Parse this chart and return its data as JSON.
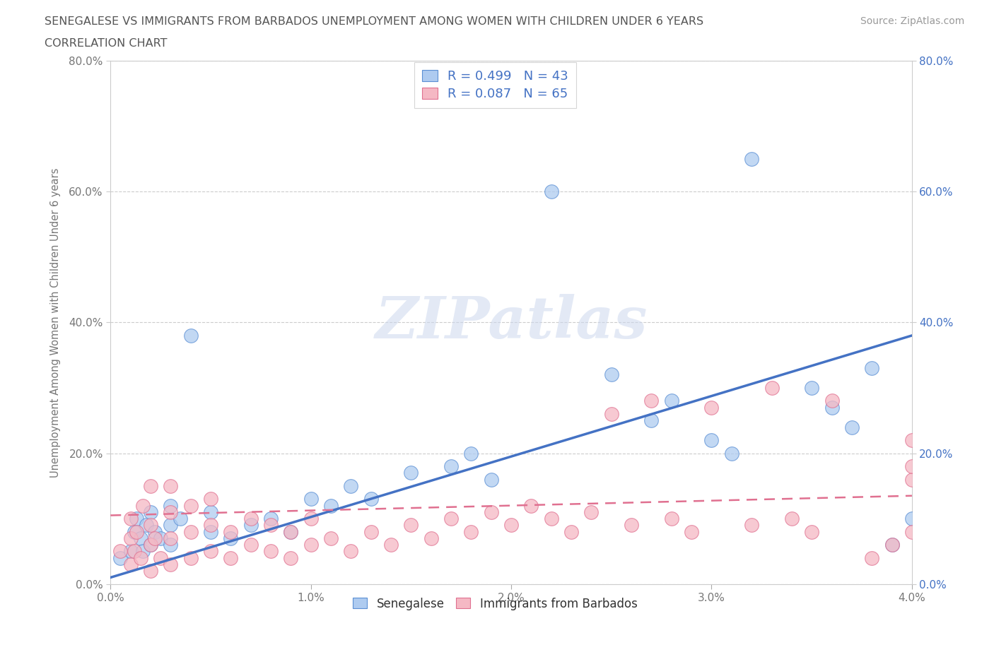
{
  "title_line1": "SENEGALESE VS IMMIGRANTS FROM BARBADOS UNEMPLOYMENT AMONG WOMEN WITH CHILDREN UNDER 6 YEARS",
  "title_line2": "CORRELATION CHART",
  "source": "Source: ZipAtlas.com",
  "ylabel": "Unemployment Among Women with Children Under 6 years",
  "xlim": [
    0.0,
    0.04
  ],
  "ylim": [
    0.0,
    0.8
  ],
  "xticks": [
    0.0,
    0.01,
    0.02,
    0.03,
    0.04
  ],
  "xtick_labels": [
    "0.0%",
    "1.0%",
    "2.0%",
    "3.0%",
    "4.0%"
  ],
  "yticks": [
    0.0,
    0.2,
    0.4,
    0.6,
    0.8
  ],
  "ytick_labels": [
    "0.0%",
    "20.0%",
    "40.0%",
    "60.0%",
    "80.0%"
  ],
  "legend1_label": "Senegalese",
  "legend2_label": "Immigrants from Barbados",
  "R1": 0.499,
  "N1": 43,
  "R2": 0.087,
  "N2": 65,
  "color_blue_fill": "#aecbf0",
  "color_pink_fill": "#f5b8c4",
  "color_blue_edge": "#5b8fd4",
  "color_pink_edge": "#e07090",
  "color_blue_text": "#4472c4",
  "color_line_blue": "#4472c4",
  "color_line_pink": "#e07090",
  "watermark": "ZIPatlas",
  "blue_line_y0": 0.01,
  "blue_line_y1": 0.38,
  "pink_line_y0": 0.105,
  "pink_line_y1": 0.135,
  "senegalese_x": [
    0.0005,
    0.001,
    0.0012,
    0.0013,
    0.0015,
    0.0016,
    0.0018,
    0.002,
    0.002,
    0.0022,
    0.0025,
    0.003,
    0.003,
    0.003,
    0.0035,
    0.004,
    0.005,
    0.005,
    0.006,
    0.007,
    0.008,
    0.009,
    0.01,
    0.011,
    0.012,
    0.013,
    0.015,
    0.017,
    0.018,
    0.019,
    0.022,
    0.025,
    0.027,
    0.028,
    0.03,
    0.031,
    0.032,
    0.035,
    0.036,
    0.037,
    0.038,
    0.039,
    0.04
  ],
  "senegalese_y": [
    0.04,
    0.05,
    0.08,
    0.1,
    0.07,
    0.05,
    0.09,
    0.06,
    0.11,
    0.08,
    0.07,
    0.09,
    0.12,
    0.06,
    0.1,
    0.38,
    0.08,
    0.11,
    0.07,
    0.09,
    0.1,
    0.08,
    0.13,
    0.12,
    0.15,
    0.13,
    0.17,
    0.18,
    0.2,
    0.16,
    0.6,
    0.32,
    0.25,
    0.28,
    0.22,
    0.2,
    0.65,
    0.3,
    0.27,
    0.24,
    0.33,
    0.06,
    0.1
  ],
  "barbados_x": [
    0.0005,
    0.001,
    0.001,
    0.001,
    0.0012,
    0.0013,
    0.0015,
    0.0016,
    0.002,
    0.002,
    0.002,
    0.002,
    0.0022,
    0.0025,
    0.003,
    0.003,
    0.003,
    0.003,
    0.004,
    0.004,
    0.004,
    0.005,
    0.005,
    0.005,
    0.006,
    0.006,
    0.007,
    0.007,
    0.008,
    0.008,
    0.009,
    0.009,
    0.01,
    0.01,
    0.011,
    0.012,
    0.013,
    0.014,
    0.015,
    0.016,
    0.017,
    0.018,
    0.019,
    0.02,
    0.021,
    0.022,
    0.023,
    0.024,
    0.025,
    0.026,
    0.027,
    0.028,
    0.029,
    0.03,
    0.032,
    0.033,
    0.034,
    0.035,
    0.036,
    0.038,
    0.039,
    0.04,
    0.04,
    0.04,
    0.04
  ],
  "barbados_y": [
    0.05,
    0.03,
    0.07,
    0.1,
    0.05,
    0.08,
    0.04,
    0.12,
    0.02,
    0.06,
    0.09,
    0.15,
    0.07,
    0.04,
    0.03,
    0.07,
    0.11,
    0.15,
    0.04,
    0.08,
    0.12,
    0.05,
    0.09,
    0.13,
    0.04,
    0.08,
    0.06,
    0.1,
    0.05,
    0.09,
    0.04,
    0.08,
    0.06,
    0.1,
    0.07,
    0.05,
    0.08,
    0.06,
    0.09,
    0.07,
    0.1,
    0.08,
    0.11,
    0.09,
    0.12,
    0.1,
    0.08,
    0.11,
    0.26,
    0.09,
    0.28,
    0.1,
    0.08,
    0.27,
    0.09,
    0.3,
    0.1,
    0.08,
    0.28,
    0.04,
    0.06,
    0.16,
    0.18,
    0.22,
    0.08
  ]
}
